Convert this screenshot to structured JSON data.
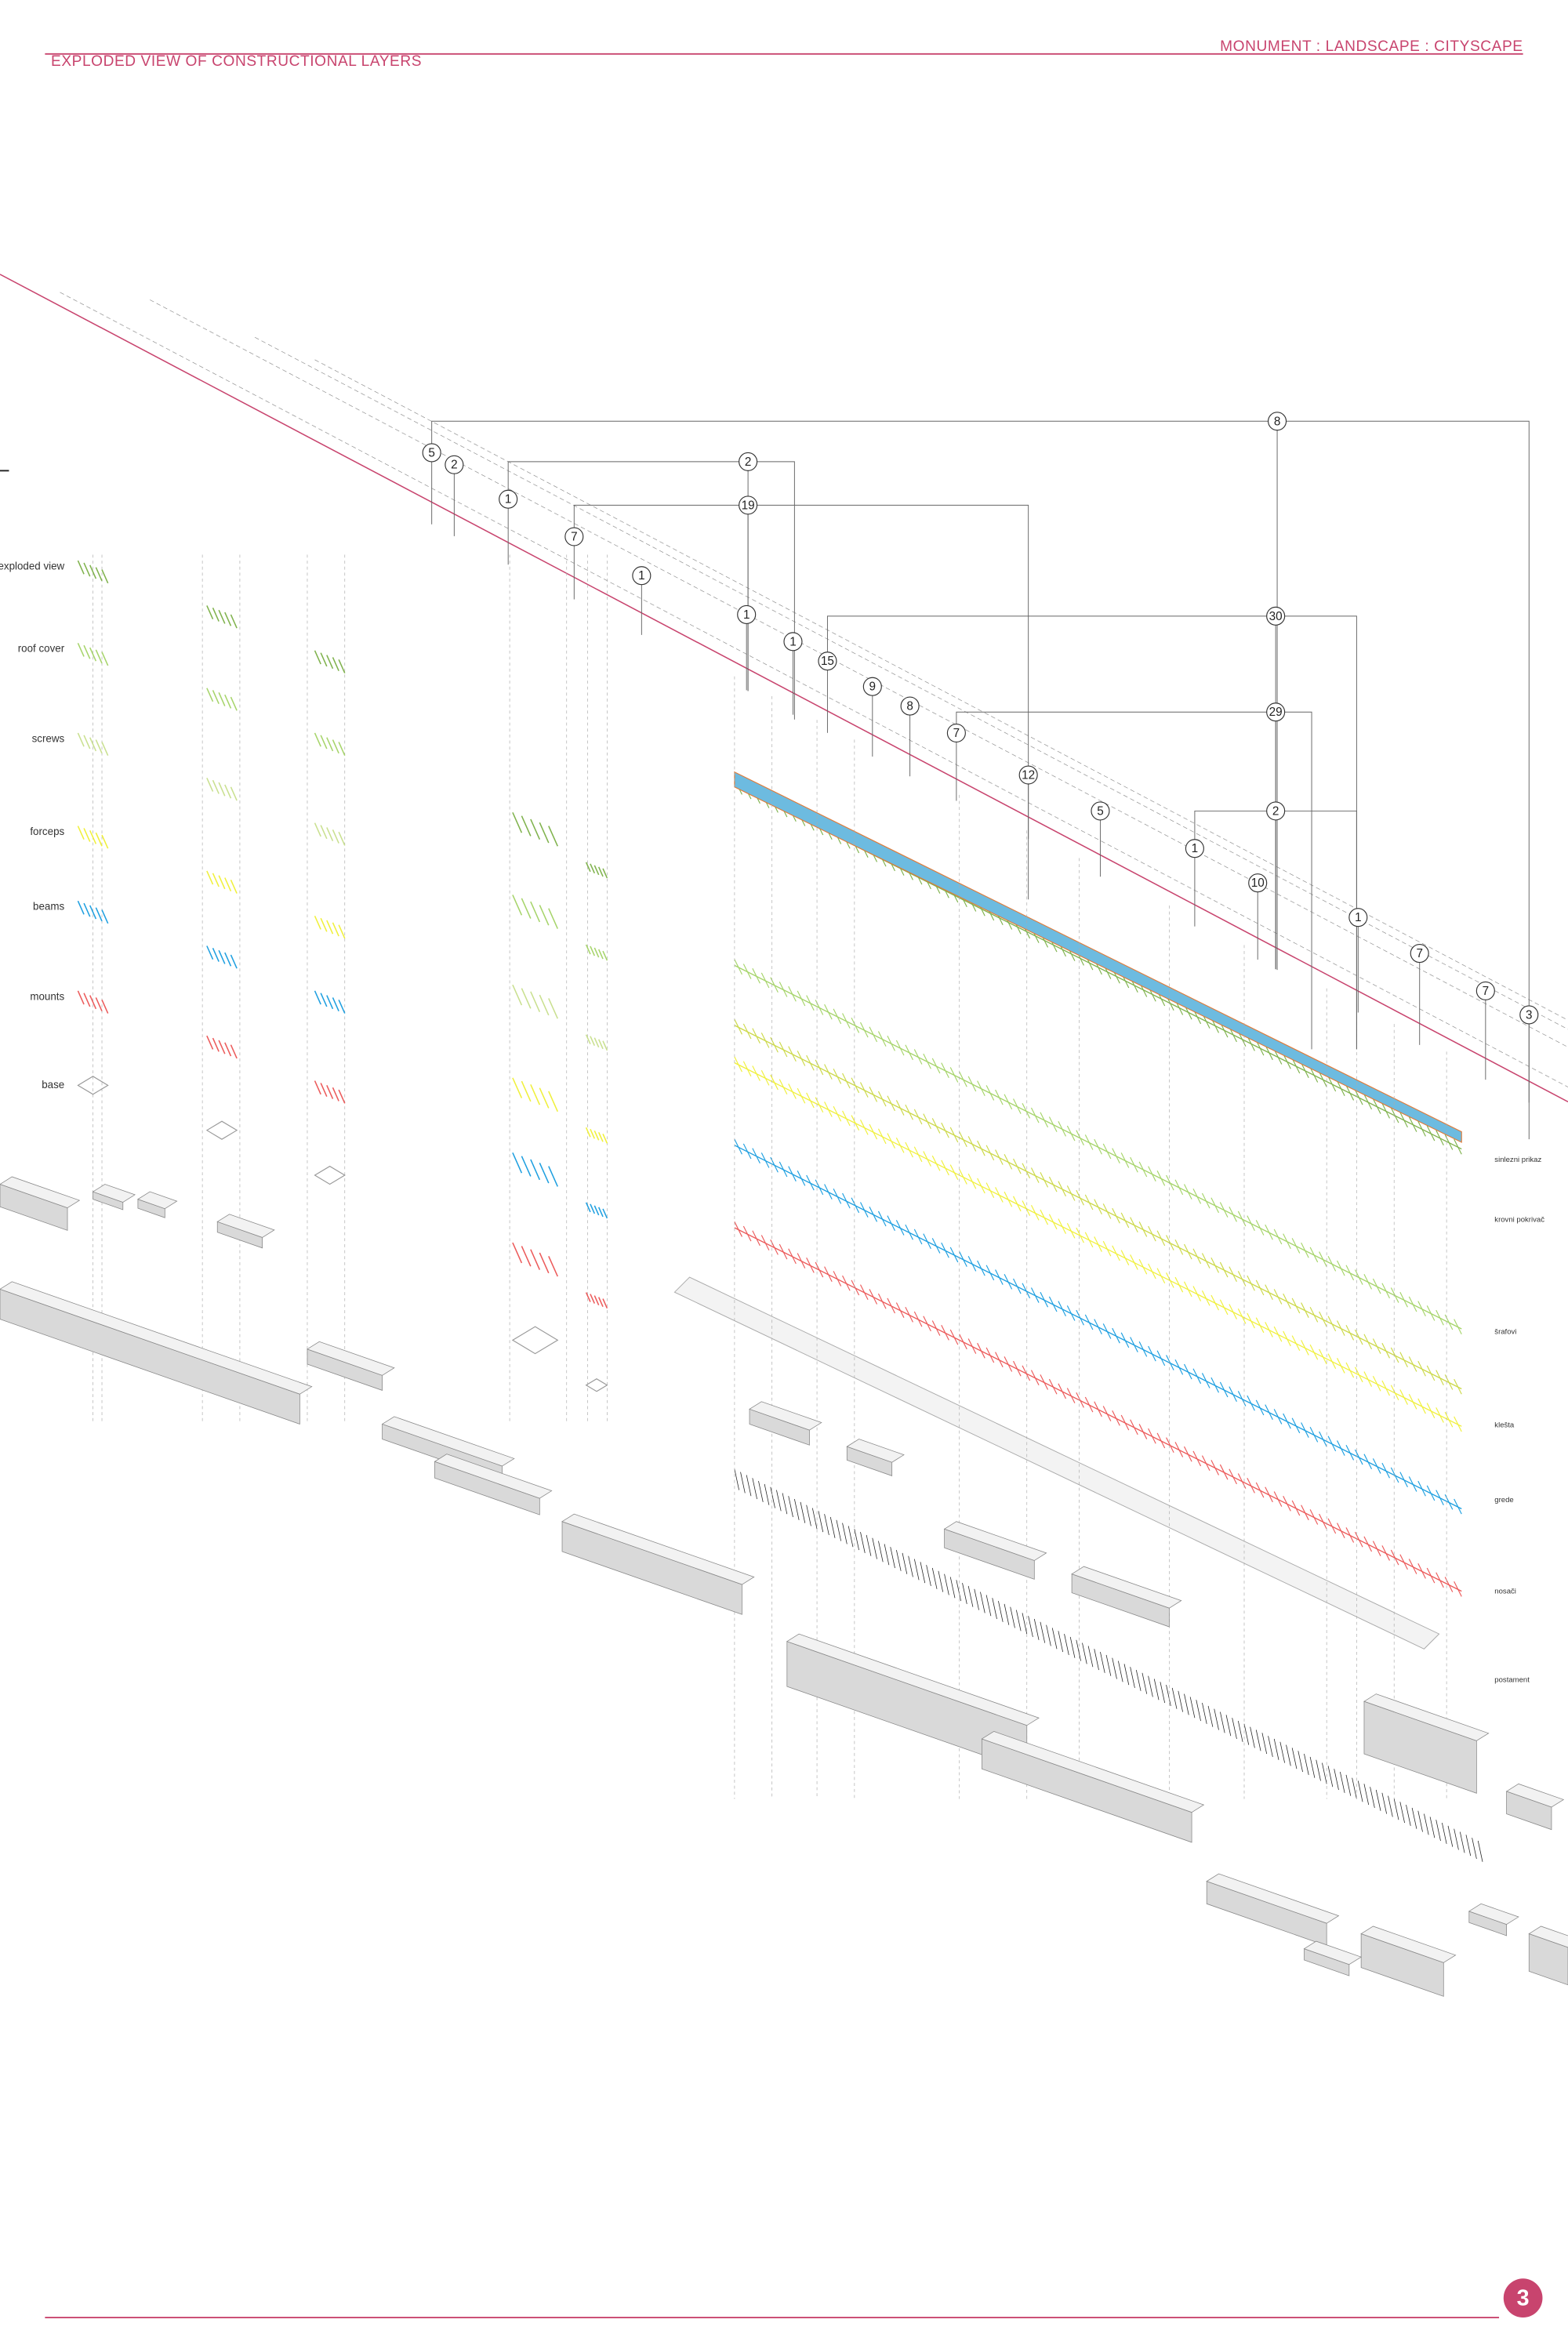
{
  "header": {
    "title": "EXPLODED VIEW OF CONSTRUCTIONAL LAYERS",
    "subtitle": "MONUMENT : LANDSCAPE : CITYSCAPE"
  },
  "legend_left": [
    "exploded view",
    "roof cover",
    "screws",
    "forceps",
    "beams",
    "mounts",
    "base"
  ],
  "legend_right": [
    "sinlezni prikaz",
    "krovni pokrivač",
    "šrafovi",
    "klešta",
    "grede",
    "nosači",
    "postament"
  ],
  "callouts": [
    "8",
    "5",
    "2",
    "2",
    "1",
    "19",
    "7",
    "1",
    "1",
    "30",
    "1",
    "15",
    "9",
    "8",
    "29",
    "7",
    "12",
    "5",
    "2",
    "1",
    "10",
    "1",
    "7",
    "7",
    "3"
  ],
  "page_number": "3"
}
